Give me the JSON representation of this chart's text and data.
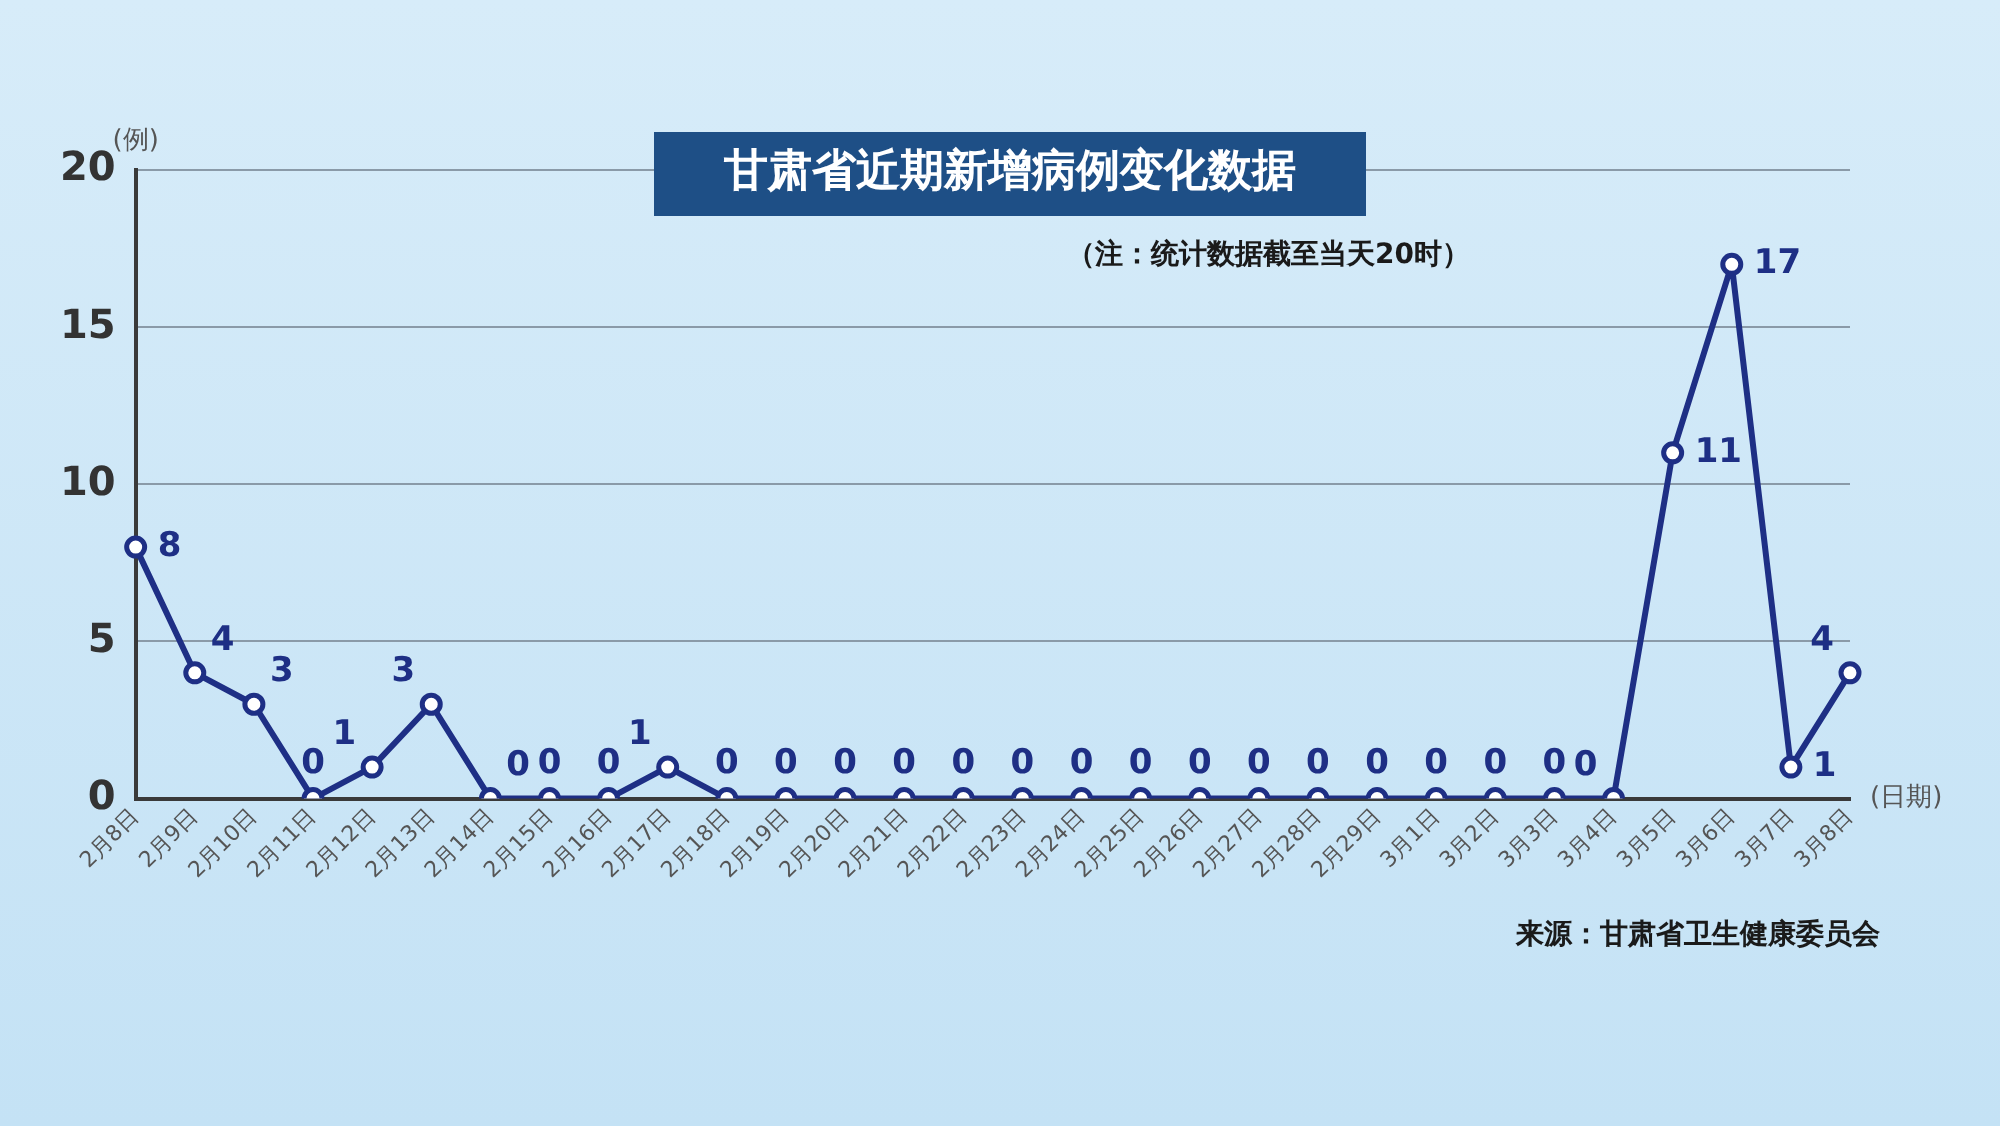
{
  "chart_data": {
    "type": "line",
    "title": "甘肃省近期新增病例变化数据",
    "subtitle": "（注：统计数据截至当天20时）",
    "ylabel": "(例)",
    "xlabel": "(日期)",
    "annotations": [
      "来源：甘肃省卫生健康委员会"
    ],
    "categories": [
      "2月8日",
      "2月9日",
      "2月10日",
      "2月11日",
      "2月12日",
      "2月13日",
      "2月14日",
      "2月15日",
      "2月16日",
      "2月17日",
      "2月18日",
      "2月19日",
      "2月20日",
      "2月21日",
      "2月22日",
      "2月23日",
      "2月24日",
      "2月25日",
      "2月26日",
      "2月27日",
      "2月28日",
      "2月29日",
      "3月1日",
      "3月2日",
      "3月3日",
      "3月4日",
      "3月5日",
      "3月6日",
      "3月7日",
      "3月8日"
    ],
    "series": [
      {
        "color": "#1e2f85",
        "values": [
          8,
          4,
          3,
          0,
          1,
          3,
          0,
          0,
          0,
          1,
          0,
          0,
          0,
          0,
          0,
          0,
          0,
          0,
          0,
          0,
          0,
          0,
          0,
          0,
          0,
          0,
          11,
          17,
          1,
          4
        ]
      }
    ],
    "ylim": [
      0,
      20
    ],
    "yticks": [
      0,
      5,
      10,
      15,
      20
    ],
    "grid": "y",
    "marker": "circle",
    "line_style": "solid",
    "data_labels": true,
    "legend": false
  }
}
